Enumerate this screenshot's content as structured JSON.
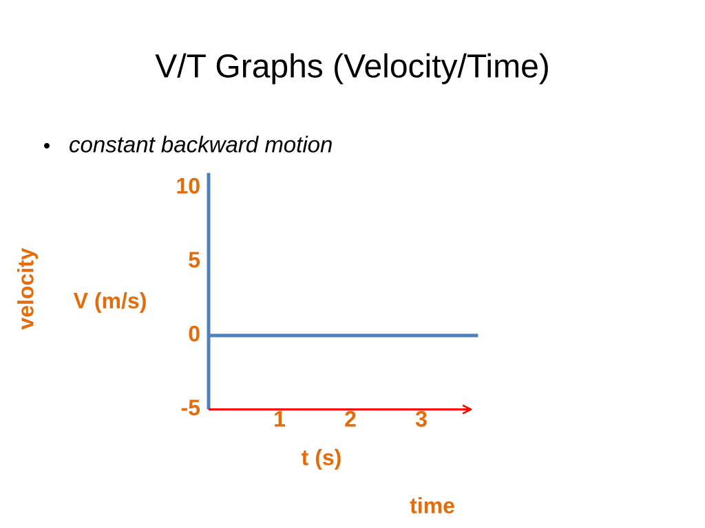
{
  "title": "V/T Graphs (Velocity/Time)",
  "bullet": "constant backward motion",
  "chart_data": {
    "type": "line",
    "ylabel": "V (m/s)",
    "xlabel": "t (s)",
    "ylabel_side": "velocity",
    "xlabel_side": "time",
    "ylim": [
      -5,
      11
    ],
    "yticks": [
      10,
      5,
      0,
      -5
    ],
    "xlim": [
      0,
      3.8
    ],
    "xticks": [
      1,
      2,
      3
    ],
    "axis_color": "#4f81bd",
    "label_color": "#e46c0a",
    "series": [
      {
        "color": "#ff0000",
        "x": [
          0,
          3.7
        ],
        "values": [
          -5,
          -5
        ]
      }
    ]
  }
}
